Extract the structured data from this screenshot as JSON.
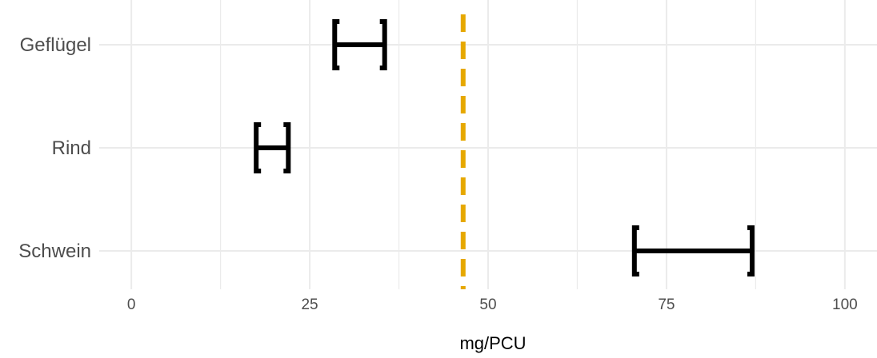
{
  "chart_data": {
    "type": "errorbar",
    "title": "",
    "xlabel": "mg/PCU",
    "ylabel": "",
    "xlim": [
      -4.5,
      104.5
    ],
    "x_ticks": [
      0,
      25,
      50,
      75,
      100
    ],
    "x_tick_labels": [
      "0",
      "25",
      "50",
      "75",
      "100"
    ],
    "categories": [
      "Geflügel",
      "Rind",
      "Schwein"
    ],
    "intervals": [
      {
        "category": "Geflügel",
        "low": 28.5,
        "high": 35.5
      },
      {
        "category": "Rind",
        "low": 17.5,
        "high": 22.0
      },
      {
        "category": "Schwein",
        "low": 70.5,
        "high": 87.0
      }
    ],
    "reference_line": {
      "value": 46.5,
      "style": "dashed",
      "color": "#E6A800"
    },
    "interval_color": "#000000",
    "grid": true,
    "legend": "none"
  }
}
